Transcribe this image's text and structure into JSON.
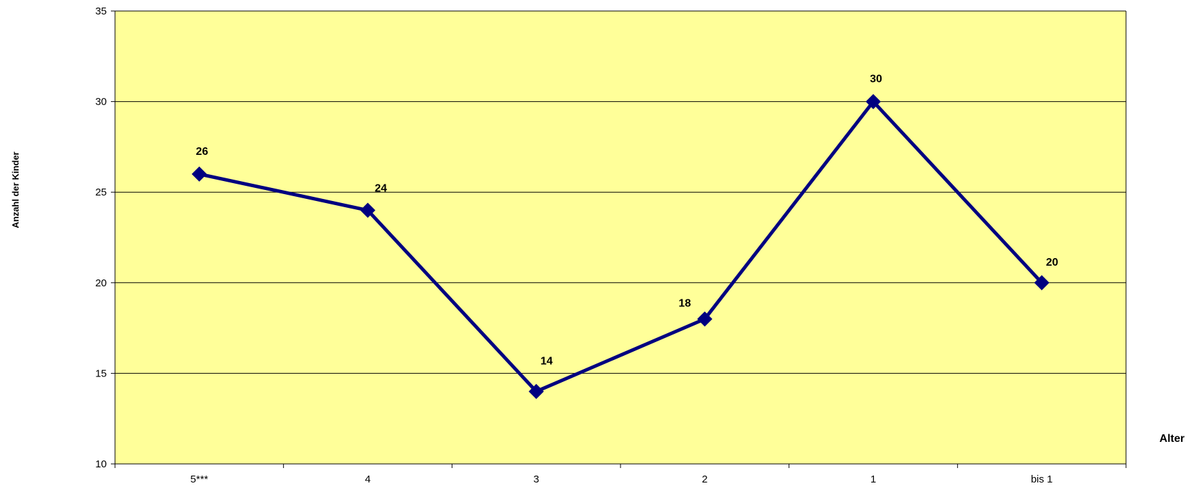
{
  "chart_data": {
    "type": "line",
    "title": "",
    "xlabel": "Alter",
    "ylabel": "Anzahl der Kinder",
    "categories": [
      "5***",
      "4",
      "3",
      "2",
      "1",
      "bis 1"
    ],
    "series": [
      {
        "values": [
          26,
          24,
          14,
          18,
          30,
          20
        ]
      }
    ],
    "data_labels": [
      "26",
      "24",
      "14",
      "18",
      "30",
      "20"
    ],
    "y_ticks": [
      10,
      15,
      20,
      25,
      30,
      35
    ],
    "ylim": [
      10,
      35
    ],
    "grid": true,
    "legend": "none",
    "colors": {
      "plot_background": "#FFFF99",
      "line": "#000080",
      "gridline": "#000000"
    },
    "marker": "diamond"
  }
}
